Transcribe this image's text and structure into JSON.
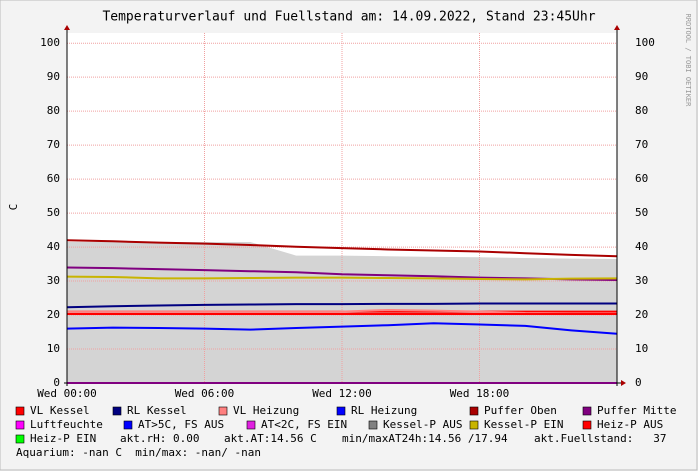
{
  "chart_data": {
    "type": "line",
    "title": "Temperaturverlauf und Fuellstand am: 14.09.2022, Stand 23:45Uhr",
    "y_label": "C",
    "watermark": "RRDTOOL / TOBI OETIKER",
    "x": [
      0,
      2,
      4,
      6,
      8,
      10,
      12,
      14,
      16,
      18,
      20,
      22,
      24
    ],
    "xlim": [
      0,
      24
    ],
    "xticks": [
      {
        "value": 0,
        "label": "Wed 00:00"
      },
      {
        "value": 6,
        "label": "Wed 06:00"
      },
      {
        "value": 12,
        "label": "Wed 12:00"
      },
      {
        "value": 18,
        "label": "Wed 18:00"
      }
    ],
    "ylim": [
      0,
      103
    ],
    "yticks": [
      0,
      10,
      20,
      30,
      40,
      50,
      60,
      70,
      80,
      90,
      100
    ],
    "grid": true,
    "series": [
      {
        "name": "VL Kessel",
        "color": "#ff0000",
        "values": [
          21,
          21,
          21,
          21,
          21,
          21,
          21,
          21,
          21,
          21,
          21,
          21,
          21
        ]
      },
      {
        "name": "RL Kessel",
        "color": "#000080",
        "values": [
          22.3,
          22.6,
          22.8,
          23,
          23.1,
          23.2,
          23.2,
          23.3,
          23.3,
          23.4,
          23.4,
          23.4,
          23.4
        ]
      },
      {
        "name": "VL Heizung",
        "color": "#ff8080",
        "values": [
          21,
          21,
          21,
          21,
          21,
          21,
          21,
          21.5,
          21.3,
          21,
          20.6,
          20.5,
          20.5
        ]
      },
      {
        "name": "RL Heizung",
        "color": "#0000ff",
        "values": [
          16,
          16.3,
          16.2,
          16,
          15.7,
          16.2,
          16.6,
          17,
          17.6,
          17.2,
          16.8,
          15.5,
          14.5
        ]
      },
      {
        "name": "Puffer Oben",
        "color": "#aa0000",
        "values": [
          42,
          41.7,
          41.3,
          41,
          40.6,
          40.1,
          39.7,
          39.3,
          39,
          38.7,
          38.2,
          37.7,
          37.3
        ]
      },
      {
        "name": "Puffer Mitte",
        "color": "#800080",
        "values": [
          34,
          33.8,
          33.5,
          33.2,
          32.9,
          32.6,
          32,
          31.7,
          31.4,
          31,
          30.8,
          30.5,
          30.3
        ]
      },
      {
        "name": "Luftfeuchte",
        "color": "#ff00ff",
        "values": [
          0,
          0,
          0,
          0,
          0,
          0,
          0,
          0,
          0,
          0,
          0,
          0,
          0
        ]
      },
      {
        "name": "AT>5C, FS AUS",
        "color": "#0000ff"
      },
      {
        "name": "AT<2C, FS EIN",
        "color": "#e020e0"
      },
      {
        "name": "Kessel-P AUS",
        "color": "#808080",
        "area": true,
        "values": [
          41.5,
          41.5,
          41.5,
          41.5,
          41.5,
          37.5,
          37.5,
          37.3,
          37.1,
          37,
          36.8,
          36.6,
          36.5
        ]
      },
      {
        "name": "Kessel-P EIN",
        "color": "#c8b400",
        "values": [
          31.3,
          31.2,
          30.8,
          30.8,
          30.9,
          31,
          31,
          30.9,
          30.8,
          30.6,
          30.5,
          30.7,
          30.8
        ]
      },
      {
        "name": "Heiz-P AUS",
        "color": "#ff0000",
        "values": [
          20.3,
          20.3,
          20.3,
          20.3,
          20.3,
          20.3,
          20.3,
          20.3,
          20.3,
          20.3,
          20.3,
          20.3,
          20.3
        ]
      },
      {
        "name": "Heiz-P EIN",
        "color": "#00ff00"
      }
    ],
    "comments": [
      "akt.rH: 0.00",
      "akt.AT:14.56 C",
      "min/maxAT24h:14.56 /17.94",
      "akt.Fuellstand:   37",
      "Aquarium: -nan C  min/max: -nan/ -nan"
    ]
  }
}
